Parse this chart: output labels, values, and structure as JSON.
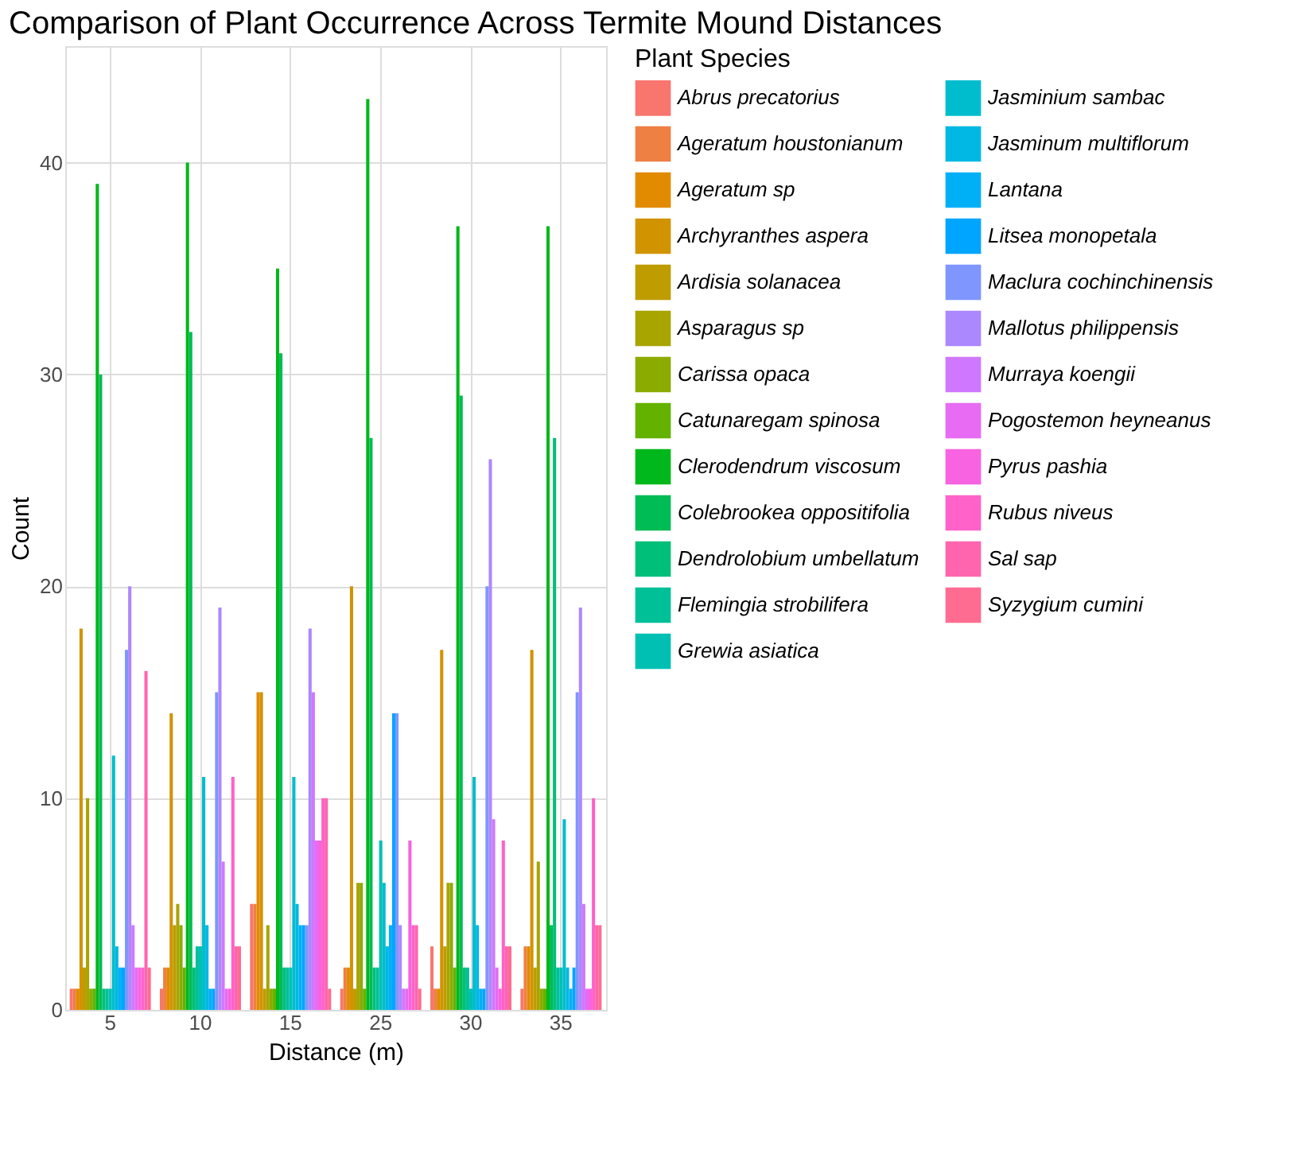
{
  "chart_data": {
    "type": "bar",
    "title": "Comparison of Plant Occurrence Across Termite Mound Distances",
    "xlabel": "Distance (m)",
    "ylabel": "Count",
    "legend_title": "Plant Species",
    "legend": "right",
    "grid": true,
    "categories": [
      "5",
      "10",
      "15",
      "25",
      "30",
      "35"
    ],
    "ylim": [
      0,
      45.5
    ],
    "yticks": [
      0,
      10,
      20,
      30,
      40
    ],
    "series": [
      {
        "name": "Abrus precatorius",
        "color": "#f8766d",
        "values": [
          1,
          1,
          5,
          1,
          3,
          1
        ]
      },
      {
        "name": "Ageratum houstonianum",
        "color": "#ee8044",
        "values": [
          1,
          2,
          5,
          2,
          1,
          3
        ]
      },
      {
        "name": "Ageratum sp",
        "color": "#e28a00",
        "values": [
          1,
          2,
          15,
          2,
          1,
          3
        ]
      },
      {
        "name": "Archyranthes aspera",
        "color": "#d29300",
        "values": [
          18,
          14,
          15,
          20,
          17,
          17
        ]
      },
      {
        "name": "Ardisia solanacea",
        "color": "#bf9c00",
        "values": [
          2,
          4,
          1,
          1,
          3,
          2
        ]
      },
      {
        "name": "Asparagus sp",
        "color": "#a8a400",
        "values": [
          10,
          5,
          4,
          6,
          6,
          7
        ]
      },
      {
        "name": "Carissa opaca",
        "color": "#8bab00",
        "values": [
          1,
          4,
          1,
          6,
          6,
          1
        ]
      },
      {
        "name": "Catunaregam spinosa",
        "color": "#63b200",
        "values": [
          1,
          2,
          1,
          1,
          2,
          1
        ]
      },
      {
        "name": "Clerodendrum viscosum",
        "color": "#00b81b",
        "values": [
          39,
          40,
          35,
          43,
          37,
          37
        ]
      },
      {
        "name": "Colebrookea oppositifolia",
        "color": "#00bc54",
        "values": [
          30,
          32,
          31,
          27,
          29,
          4
        ]
      },
      {
        "name": "Dendrolobium umbellatum",
        "color": "#00bf78",
        "values": [
          1,
          2,
          2,
          2,
          2,
          27
        ]
      },
      {
        "name": "Flemingia strobilifera",
        "color": "#00c098",
        "values": [
          1,
          3,
          2,
          2,
          2,
          2
        ]
      },
      {
        "name": "Grewia asiatica",
        "color": "#00c0b4",
        "values": [
          1,
          3,
          2,
          8,
          1,
          2
        ]
      },
      {
        "name": "Jasminium sambac",
        "color": "#00bdcd",
        "values": [
          12,
          11,
          11,
          6,
          11,
          9
        ]
      },
      {
        "name": "Jasminum multiflorum",
        "color": "#00b8e3",
        "values": [
          3,
          4,
          5,
          3,
          4,
          2
        ]
      },
      {
        "name": "Lantana",
        "color": "#00b0f6",
        "values": [
          2,
          1,
          4,
          4,
          1,
          1
        ]
      },
      {
        "name": "Litsea monopetala",
        "color": "#00a5ff",
        "values": [
          2,
          1,
          4,
          14,
          1,
          2
        ]
      },
      {
        "name": "Maclura cochinchinensis",
        "color": "#7f96ff",
        "values": [
          17,
          15,
          4,
          14,
          20,
          15
        ]
      },
      {
        "name": "Mallotus philippensis",
        "color": "#ac88ff",
        "values": [
          20,
          19,
          18,
          4,
          26,
          19
        ]
      },
      {
        "name": "Murraya koengii",
        "color": "#cf78ff",
        "values": [
          4,
          7,
          15,
          1,
          9,
          5
        ]
      },
      {
        "name": "Pogostemon heyneanus",
        "color": "#e76bf3",
        "values": [
          2,
          1,
          8,
          1,
          2,
          1
        ]
      },
      {
        "name": "Pyrus pashia",
        "color": "#f763e0",
        "values": [
          2,
          1,
          8,
          8,
          1,
          1
        ]
      },
      {
        "name": "Rubus niveus",
        "color": "#ff62c9",
        "values": [
          2,
          11,
          10,
          4,
          8,
          10
        ]
      },
      {
        "name": "Sal sap",
        "color": "#ff65ae",
        "values": [
          16,
          3,
          10,
          4,
          3,
          4
        ]
      },
      {
        "name": "Syzygium cumini",
        "color": "#ff6c91",
        "values": [
          2,
          3,
          1,
          1,
          3,
          4
        ]
      }
    ]
  }
}
